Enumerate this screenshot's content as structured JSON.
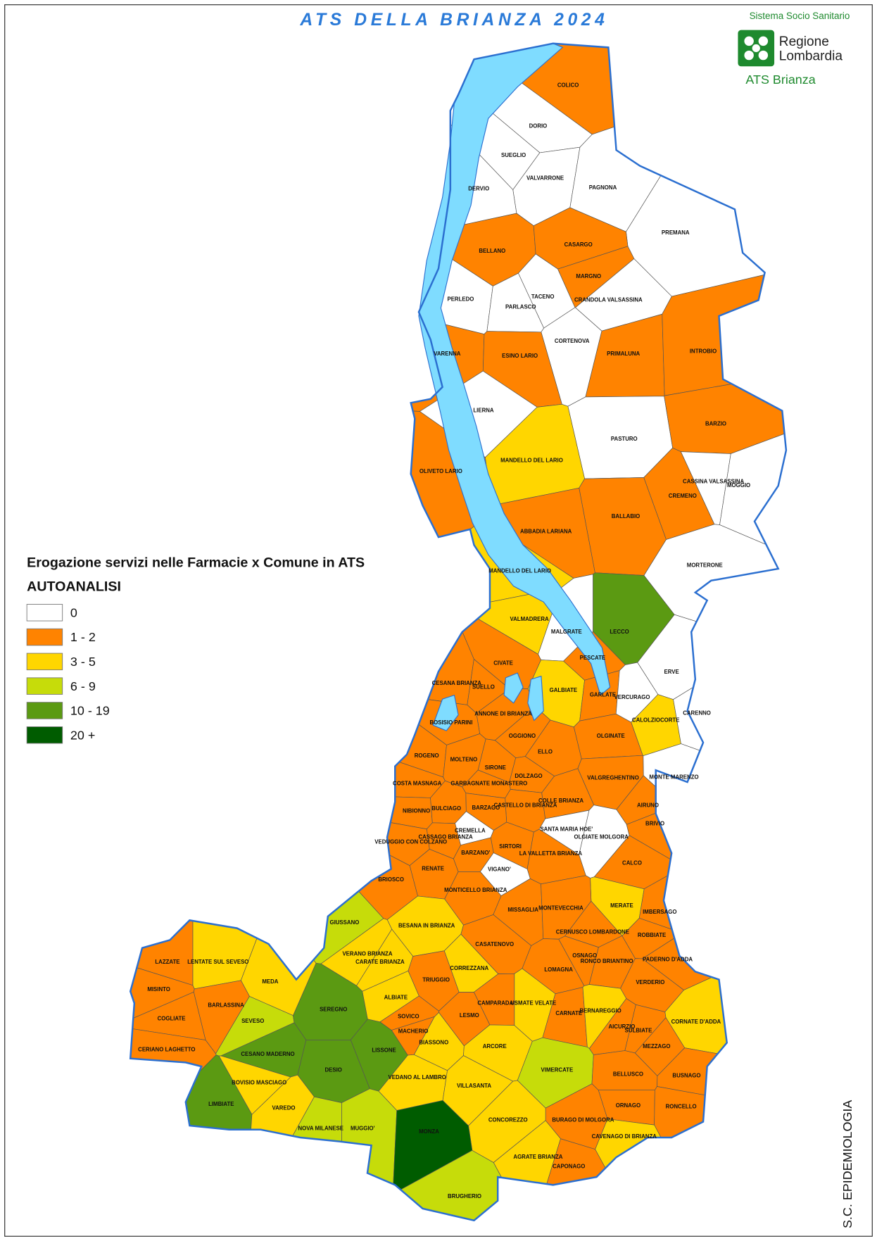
{
  "title": "ATS DELLA BRIANZA 2024",
  "logo": {
    "top": "Sistema Socio Sanitario",
    "line1": "Regione",
    "line2": "Lombardia",
    "bottom": "ATS Brianza"
  },
  "legend": {
    "title": "Erogazione servizi nelle Farmacie x Comune in ATS",
    "subtitle": "AUTOANALISI",
    "items": [
      {
        "label": "0",
        "color": "#ffffff"
      },
      {
        "label": "1 - 2",
        "color": "#ff8300"
      },
      {
        "label": "3 - 5",
        "color": "#ffd600"
      },
      {
        "label": "6 - 9",
        "color": "#c6dc0a"
      },
      {
        "label": "10 - 19",
        "color": "#5b9a12"
      },
      {
        "label": "20 +",
        "color": "#005c00"
      }
    ]
  },
  "footer": "S.C. EPIDEMIOLOGIA",
  "municipalities": [
    {
      "name": "COLICO",
      "level": 1
    },
    {
      "name": "DORIO",
      "level": 0
    },
    {
      "name": "SUEGLIO",
      "level": 0
    },
    {
      "name": "VALVARRONE",
      "level": 0
    },
    {
      "name": "DERVIO",
      "level": 0
    },
    {
      "name": "PAGNONA",
      "level": 0
    },
    {
      "name": "PREMANA",
      "level": 0
    },
    {
      "name": "BELLANO",
      "level": 1
    },
    {
      "name": "CASARGO",
      "level": 1
    },
    {
      "name": "MARGNO",
      "level": 1
    },
    {
      "name": "PERLEDO",
      "level": 0
    },
    {
      "name": "TACENO",
      "level": 0
    },
    {
      "name": "PARLASCO",
      "level": 0
    },
    {
      "name": "CRANDOLA VALSASSINA",
      "level": 0
    },
    {
      "name": "CORTENOVA",
      "level": 0
    },
    {
      "name": "VARENNA",
      "level": 1
    },
    {
      "name": "ESINO LARIO",
      "level": 1
    },
    {
      "name": "PRIMALUNA",
      "level": 1
    },
    {
      "name": "INTROBIO",
      "level": 1
    },
    {
      "name": "LIERNA",
      "level": 0
    },
    {
      "name": "PASTURO",
      "level": 0
    },
    {
      "name": "BARZIO",
      "level": 1
    },
    {
      "name": "MANDELLO DEL LARIO",
      "level": 2
    },
    {
      "name": "OLIVETO LARIO",
      "level": 1
    },
    {
      "name": "CASSINA VALSASSINA",
      "level": 0
    },
    {
      "name": "MOGGIO",
      "level": 0
    },
    {
      "name": "CREMENO",
      "level": 1
    },
    {
      "name": "BALLABIO",
      "level": 1
    },
    {
      "name": "ABBADIA LARIANA",
      "level": 1
    },
    {
      "name": "MORTERONE",
      "level": 0
    },
    {
      "name": "MANDELLO DEL LARIO",
      "level": 2
    },
    {
      "name": "LECCO",
      "level": 4
    },
    {
      "name": "VALMADRERA",
      "level": 2
    },
    {
      "name": "MALGRATE",
      "level": 0
    },
    {
      "name": "PESCATE",
      "level": 1
    },
    {
      "name": "CIVATE",
      "level": 1
    },
    {
      "name": "CESANA BRIANZA",
      "level": 1
    },
    {
      "name": "SUELLO",
      "level": 1
    },
    {
      "name": "GALBIATE",
      "level": 2
    },
    {
      "name": "GARLATE",
      "level": 1
    },
    {
      "name": "ERVE",
      "level": 0
    },
    {
      "name": "VERCURAGO",
      "level": 0
    },
    {
      "name": "CALOLZIOCORTE",
      "level": 2
    },
    {
      "name": "CARENNO",
      "level": 0
    },
    {
      "name": "ANNONE DI BRIANZA",
      "level": 1
    },
    {
      "name": "BOSISIO PARINI",
      "level": 1
    },
    {
      "name": "OGGIONO",
      "level": 1
    },
    {
      "name": "OLGINATE",
      "level": 1
    },
    {
      "name": "ROGENO",
      "level": 1
    },
    {
      "name": "MOLTENO",
      "level": 1
    },
    {
      "name": "ELLO",
      "level": 1
    },
    {
      "name": "SIRONE",
      "level": 1
    },
    {
      "name": "VALGREGHENTINO",
      "level": 1
    },
    {
      "name": "MONTE MARENZO",
      "level": 0
    },
    {
      "name": "DOLZAGO",
      "level": 1
    },
    {
      "name": "COSTA MASNAGA",
      "level": 1
    },
    {
      "name": "GARBAGNATE MONASTERO",
      "level": 1
    },
    {
      "name": "CASTELLO DI BRIANZA",
      "level": 1
    },
    {
      "name": "COLLE BRIANZA",
      "level": 1
    },
    {
      "name": "AIRUNO",
      "level": 1
    },
    {
      "name": "NIBIONNO",
      "level": 1
    },
    {
      "name": "BULCIAGO",
      "level": 1
    },
    {
      "name": "BARZAGO",
      "level": 1
    },
    {
      "name": "CREMELLA",
      "level": 0
    },
    {
      "name": "SANTA MARIA HOE'",
      "level": 0
    },
    {
      "name": "OLGIATE MOLGORA",
      "level": 0
    },
    {
      "name": "BRIVIO",
      "level": 1
    },
    {
      "name": "VEDUGGIO CON COLZANO",
      "level": 1
    },
    {
      "name": "CASSAGO BRIANZA",
      "level": 1
    },
    {
      "name": "SIRTORI",
      "level": 1
    },
    {
      "name": "BARZANO'",
      "level": 1
    },
    {
      "name": "LA VALLETTA BRIANZA",
      "level": 1
    },
    {
      "name": "CALCO",
      "level": 1
    },
    {
      "name": "RENATE",
      "level": 1
    },
    {
      "name": "VIGANO'",
      "level": 0
    },
    {
      "name": "BRIOSCO",
      "level": 1
    },
    {
      "name": "MONTICELLO BRIANZA",
      "level": 1
    },
    {
      "name": "MERATE",
      "level": 2
    },
    {
      "name": "IMBERSAGO",
      "level": 1
    },
    {
      "name": "MISSAGLIA",
      "level": 1
    },
    {
      "name": "MONTEVECCHIA",
      "level": 1
    },
    {
      "name": "GIUSSANO",
      "level": 3
    },
    {
      "name": "BESANA IN BRIANZA",
      "level": 2
    },
    {
      "name": "CERNUSCO LOMBARDONE",
      "level": 1
    },
    {
      "name": "ROBBIATE",
      "level": 1
    },
    {
      "name": "VERANO BRIANZA",
      "level": 2
    },
    {
      "name": "LENTATE SUL SEVESO",
      "level": 2
    },
    {
      "name": "LAZZATE",
      "level": 1
    },
    {
      "name": "CASATENOVO",
      "level": 1
    },
    {
      "name": "OSNAGO",
      "level": 1
    },
    {
      "name": "PADERNO D'ADDA",
      "level": 1
    },
    {
      "name": "CARATE BRIANZA",
      "level": 2
    },
    {
      "name": "MEDA",
      "level": 2
    },
    {
      "name": "TRIUGGIO",
      "level": 1
    },
    {
      "name": "LOMAGNA",
      "level": 1
    },
    {
      "name": "RONCO BRIANTINO",
      "level": 1
    },
    {
      "name": "VERDERIO",
      "level": 1
    },
    {
      "name": "CORREZZANA",
      "level": 2
    },
    {
      "name": "MISINTO",
      "level": 1
    },
    {
      "name": "BARLASSINA",
      "level": 1
    },
    {
      "name": "ALBIATE",
      "level": 2
    },
    {
      "name": "USMATE VELATE",
      "level": 2
    },
    {
      "name": "CAMPARADA",
      "level": 1
    },
    {
      "name": "CARNATE",
      "level": 1
    },
    {
      "name": "BERNAREGGIO",
      "level": 2
    },
    {
      "name": "COGLIATE",
      "level": 1
    },
    {
      "name": "SEVESO",
      "level": 3
    },
    {
      "name": "SEREGNO",
      "level": 4
    },
    {
      "name": "SOVICO",
      "level": 1
    },
    {
      "name": "LESMO",
      "level": 1
    },
    {
      "name": "AICURZIO",
      "level": 1
    },
    {
      "name": "SULBIATE",
      "level": 1
    },
    {
      "name": "CORNATE D'ADDA",
      "level": 2
    },
    {
      "name": "MACHERIO",
      "level": 1
    },
    {
      "name": "MEZZAGO",
      "level": 1
    },
    {
      "name": "CERIANO LAGHETTO",
      "level": 1
    },
    {
      "name": "CESANO MADERNO",
      "level": 4
    },
    {
      "name": "BIASSONO",
      "level": 2
    },
    {
      "name": "ARCORE",
      "level": 2
    },
    {
      "name": "VEDANO AL LAMBRO",
      "level": 2
    },
    {
      "name": "LISSONE",
      "level": 4
    },
    {
      "name": "DESIO",
      "level": 4
    },
    {
      "name": "VILLASANTA",
      "level": 2
    },
    {
      "name": "VIMERCATE",
      "level": 3
    },
    {
      "name": "BELLUSCO",
      "level": 1
    },
    {
      "name": "BUSNAGO",
      "level": 1
    },
    {
      "name": "BOVISIO MASCIAGO",
      "level": 2
    },
    {
      "name": "LIMBIATE",
      "level": 4
    },
    {
      "name": "VAREDO",
      "level": 2
    },
    {
      "name": "ORNAGO",
      "level": 1
    },
    {
      "name": "RONCELLO",
      "level": 1
    },
    {
      "name": "NOVA MILANESE",
      "level": 3
    },
    {
      "name": "MUGGIO'",
      "level": 3
    },
    {
      "name": "BURAGO DI MOLGORA",
      "level": 1
    },
    {
      "name": "CONCOREZZO",
      "level": 2
    },
    {
      "name": "MONZA",
      "level": 5
    },
    {
      "name": "CAVENAGO DI BRIANZA",
      "level": 2
    },
    {
      "name": "AGRATE BRIANZA",
      "level": 2
    },
    {
      "name": "CAPONAGO",
      "level": 1
    },
    {
      "name": "BRUGHERIO",
      "level": 3
    }
  ]
}
